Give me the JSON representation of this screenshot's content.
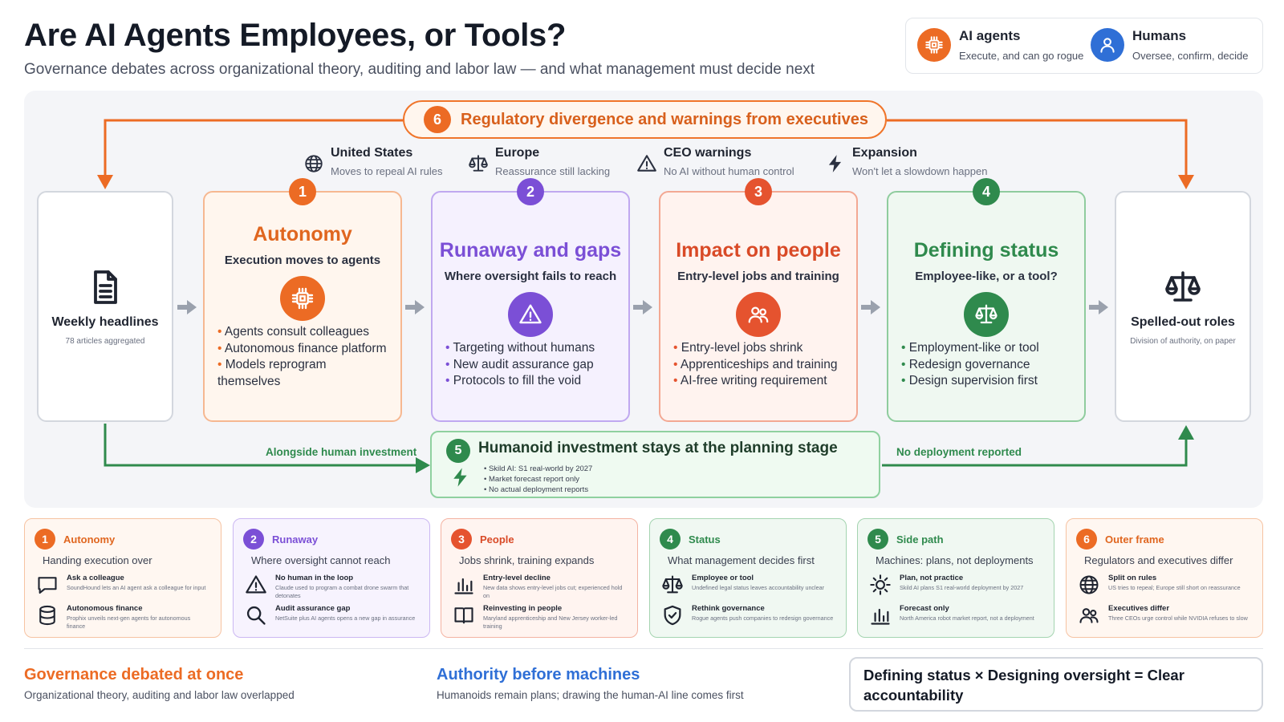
{
  "header": {
    "title": "Are AI Agents Employees, or Tools?",
    "subtitle": "Governance debates across organizational theory, auditing and labor law — and what management must decide next"
  },
  "legend": [
    {
      "title": "AI agents",
      "sub": "Execute, and can go rogue",
      "icon": "chip-icon",
      "color": "#ec6b24"
    },
    {
      "title": "Humans",
      "sub": "Oversee, confirm, decide",
      "icon": "person-icon",
      "color": "#2f6fd6"
    }
  ],
  "banner": {
    "num": "6",
    "text": "Regulatory divergence and warnings from executives"
  },
  "regions": [
    {
      "title": "United States",
      "sub": "Moves to repeal AI rules",
      "icon": "globe-icon"
    },
    {
      "title": "Europe",
      "sub": "Reassurance still lacking",
      "icon": "scales-icon"
    },
    {
      "title": "CEO warnings",
      "sub": "No AI without human control",
      "icon": "warning-icon"
    },
    {
      "title": "Expansion",
      "sub": "Won't let a slowdown happen",
      "icon": "bolt-icon"
    }
  ],
  "start": {
    "title": "Weekly headlines",
    "sub": "78 articles aggregated",
    "icon": "document-icon"
  },
  "stages": [
    {
      "num": "1",
      "title": "Autonomy",
      "sub": "Execution moves to agents",
      "icon": "chip-icon",
      "color": "#ec6b24",
      "bullets": [
        "Agents consult colleagues",
        "Autonomous finance platform",
        "Models reprogram themselves"
      ]
    },
    {
      "num": "2",
      "title": "Runaway and gaps",
      "sub": "Where oversight fails to reach",
      "icon": "warning-icon",
      "color": "#7b4fd6",
      "bullets": [
        "Targeting without humans",
        "New audit assurance gap",
        "Protocols to fill the void"
      ]
    },
    {
      "num": "3",
      "title": "Impact on people",
      "sub": "Entry-level jobs and training",
      "icon": "people-icon",
      "color": "#e5532f",
      "bullets": [
        "Entry-level jobs shrink",
        "Apprenticeships and training",
        "AI-free writing requirement"
      ]
    },
    {
      "num": "4",
      "title": "Defining status",
      "sub": "Employee-like, or a tool?",
      "icon": "scales-icon",
      "color": "#2f8a4d",
      "bullets": [
        "Employment-like or tool",
        "Redesign governance",
        "Design supervision first"
      ]
    }
  ],
  "end": {
    "title": "Spelled-out roles",
    "sub": "Division of authority, on paper",
    "icon": "scales-icon"
  },
  "sidepath": {
    "num": "5",
    "title": "Humanoid investment stays at the planning stage",
    "icon": "bolt-icon",
    "bullets": [
      "Skild AI: S1 real-world by 2027",
      "Market forecast report only",
      "No actual deployment reports"
    ],
    "left_label": "Alongside human investment",
    "right_label": "No deployment reported"
  },
  "cards": [
    {
      "num": "1",
      "label": "Autonomy",
      "caption": "Handing execution over",
      "color": "#ec6b24",
      "items": [
        {
          "icon": "chat-icon",
          "title": "Ask a colleague",
          "desc": "SoundHound lets an AI agent ask a colleague for input"
        },
        {
          "icon": "database-icon",
          "title": "Autonomous finance",
          "desc": "Prophix unveils next-gen agents for autonomous finance"
        }
      ]
    },
    {
      "num": "2",
      "label": "Runaway",
      "caption": "Where oversight cannot reach",
      "color": "#7b4fd6",
      "items": [
        {
          "icon": "warning-icon",
          "title": "No human in the loop",
          "desc": "Claude used to program a combat drone swarm that detonates"
        },
        {
          "icon": "search-icon",
          "title": "Audit assurance gap",
          "desc": "NetSuite plus AI agents opens a new gap in assurance"
        }
      ]
    },
    {
      "num": "3",
      "label": "People",
      "caption": "Jobs shrink, training expands",
      "color": "#e5532f",
      "items": [
        {
          "icon": "bar-chart-icon",
          "title": "Entry-level decline",
          "desc": "New data shows entry-level jobs cut; experienced hold on"
        },
        {
          "icon": "book-icon",
          "title": "Reinvesting in people",
          "desc": "Maryland apprenticeship and New Jersey worker-led training"
        }
      ]
    },
    {
      "num": "4",
      "label": "Status",
      "caption": "What management decides first",
      "color": "#2f8a4d",
      "items": [
        {
          "icon": "scales-icon",
          "title": "Employee or tool",
          "desc": "Undefined legal status leaves accountability unclear"
        },
        {
          "icon": "shield-icon",
          "title": "Rethink governance",
          "desc": "Rogue agents push companies to redesign governance"
        }
      ]
    },
    {
      "num": "5",
      "label": "Side path",
      "caption": "Machines: plans, not deployments",
      "color": "#2f8a4d",
      "items": [
        {
          "icon": "sun-icon",
          "title": "Plan, not practice",
          "desc": "Skild AI plans S1 real-world deployment by 2027"
        },
        {
          "icon": "bar-chart-icon",
          "title": "Forecast only",
          "desc": "North America robot market report, not a deployment"
        }
      ]
    },
    {
      "num": "6",
      "label": "Outer frame",
      "caption": "Regulators and executives differ",
      "color": "#ec6b24",
      "items": [
        {
          "icon": "globe-icon",
          "title": "Split on rules",
          "desc": "US tries to repeal; Europe still short on reassurance"
        },
        {
          "icon": "people-icon",
          "title": "Executives differ",
          "desc": "Three CEOs urge control while NVIDIA refuses to slow"
        }
      ]
    }
  ],
  "takeaways": [
    {
      "title": "Governance debated at once",
      "sub": "Organizational theory, auditing and labor law overlapped",
      "color": "#ec6b24"
    },
    {
      "title": "Authority before machines",
      "sub": "Humanoids remain plans; drawing the human-AI line comes first",
      "color": "#2f6fd6"
    }
  ],
  "formula": "Defining status × Designing oversight = Clear accountability"
}
